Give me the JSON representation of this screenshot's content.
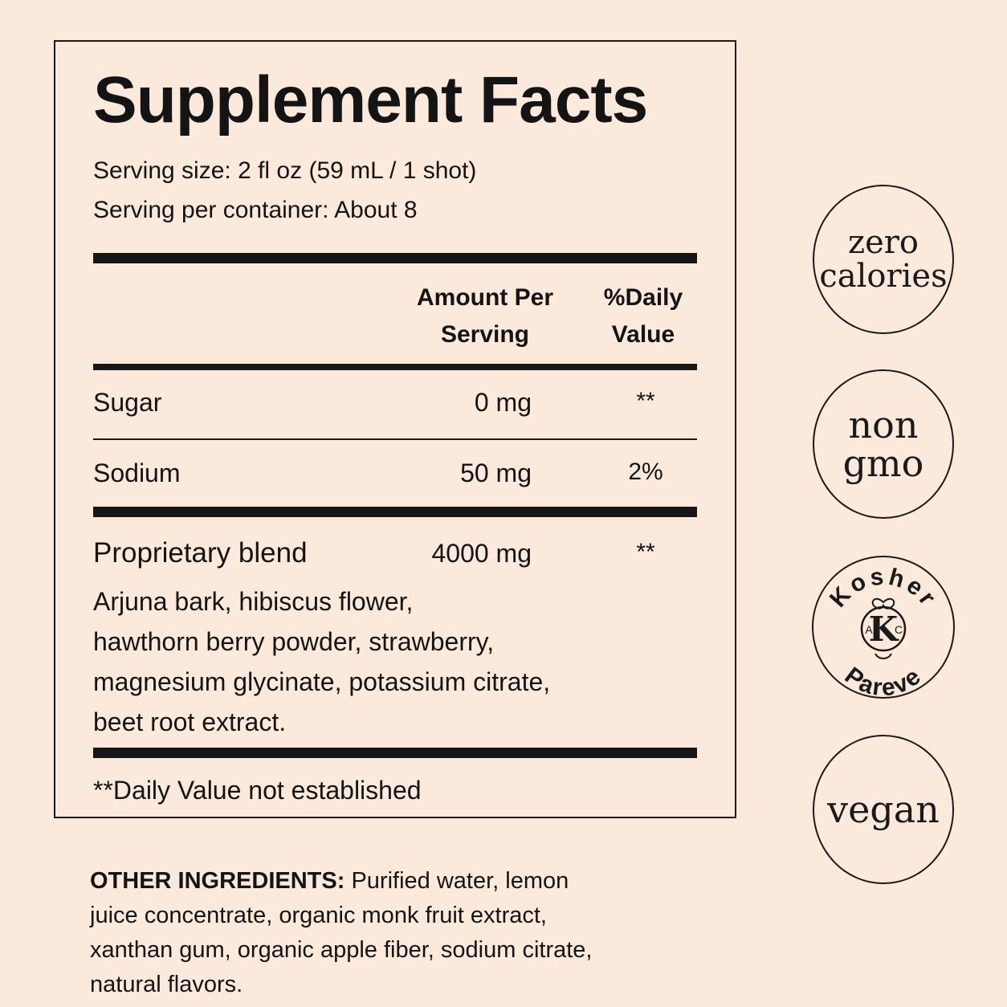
{
  "facts": {
    "title": "Supplement Facts",
    "serving_size": "Serving size: 2 fl oz (59 mL / 1 shot)",
    "servings_per_container": "Serving per container: About 8",
    "col_amount_line1": "Amount Per",
    "col_amount_line2": "Serving",
    "col_dv_line1": "%Daily",
    "col_dv_line2": "Value",
    "rows": [
      {
        "name": "Sugar",
        "amount": "0 mg",
        "dv": "**"
      },
      {
        "name": "Sodium",
        "amount": "50 mg",
        "dv": "2%"
      }
    ],
    "blend": {
      "name": "Proprietary blend",
      "amount": "4000 mg",
      "dv": "**",
      "ingredients": "Arjuna bark, hibiscus flower,\nhawthorn berry powder, strawberry,\nmagnesium glycinate, potassium citrate,\nbeet root extract."
    },
    "footnote": "**Daily Value not established"
  },
  "other_ingredients": {
    "label": "OTHER INGREDIENTS:",
    "text": " Purified water, lemon juice concentrate, organic monk fruit extract, xanthan gum, organic apple fiber, sodium citrate, natural flavors."
  },
  "badges": {
    "zero_calories": {
      "line1": "zero",
      "line2": "calories"
    },
    "non_gmo": {
      "line1": "non",
      "line2": "gmo"
    },
    "kosher": {
      "top": "Kosher",
      "center": "K",
      "left": "A",
      "right": "C",
      "bottom": "Pareve"
    },
    "vegan": {
      "line1": "vegan"
    }
  }
}
